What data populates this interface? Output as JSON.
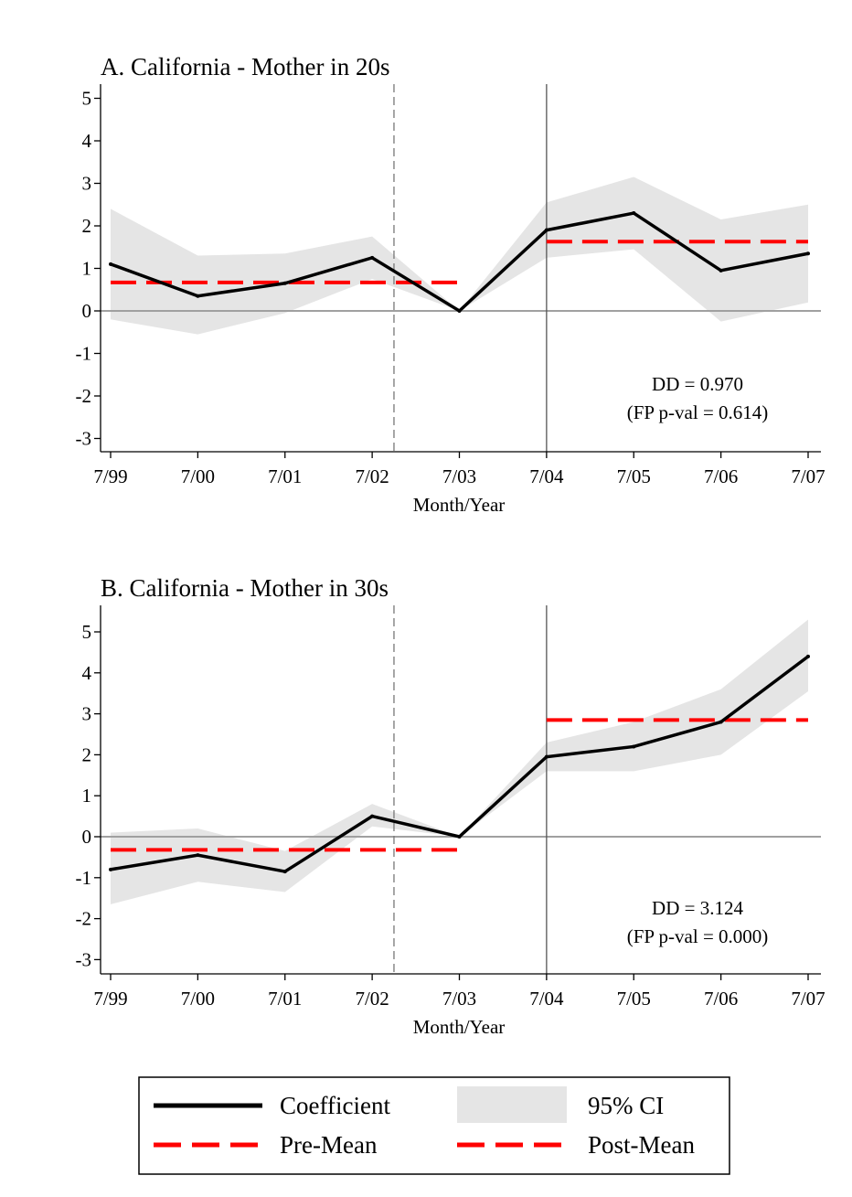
{
  "colors": {
    "coefficient": "#000000",
    "ci": "#e5e5e5",
    "mean": "#ff0000",
    "zero_line": "#a0a0a0",
    "treatment_line": "#555555",
    "dashed_vline": "#777777"
  },
  "legend": {
    "placement": "bottom",
    "items": [
      {
        "label": "Coefficient",
        "kind": "coefficient"
      },
      {
        "label": "95% CI",
        "kind": "ci"
      },
      {
        "label": "Pre-Mean",
        "kind": "pre_mean"
      },
      {
        "label": "Post-Mean",
        "kind": "post_mean"
      }
    ]
  },
  "chart_data": [
    {
      "type": "line",
      "title": "A. California - Mother in 20s",
      "xlabel": "Month/Year",
      "ylabel": "",
      "categories": [
        "7/99",
        "7/00",
        "7/01",
        "7/02",
        "7/03",
        "7/04",
        "7/05",
        "7/06",
        "7/07"
      ],
      "yticks": [
        5,
        4,
        3,
        2,
        1,
        0,
        -1,
        -2,
        -3
      ],
      "ylim": [
        -3.2,
        5.3
      ],
      "grid": false,
      "series": [
        {
          "name": "Coefficient",
          "values": [
            1.1,
            0.35,
            0.65,
            1.25,
            0.0,
            1.9,
            2.3,
            0.95,
            1.35
          ]
        },
        {
          "name": "95% CI",
          "lower": [
            -0.2,
            -0.55,
            -0.05,
            0.75,
            0.0,
            1.25,
            1.45,
            -0.25,
            0.2
          ],
          "upper": [
            2.4,
            1.3,
            1.35,
            1.75,
            0.0,
            2.55,
            3.15,
            2.15,
            2.5
          ]
        }
      ],
      "pre_mean": {
        "value": 0.67,
        "from": "7/99",
        "to": "7/03"
      },
      "post_mean": {
        "value": 1.63,
        "from": "7/04",
        "to": "7/07"
      },
      "reference_lines": {
        "zero": 0,
        "dashed_at": 3.25,
        "solid_at": 5
      },
      "annotation": {
        "line1": "DD = 0.970",
        "line2": "(FP p-val = 0.614)"
      }
    },
    {
      "type": "line",
      "title": "B. California - Mother in 30s",
      "xlabel": "Month/Year",
      "ylabel": "",
      "categories": [
        "7/99",
        "7/00",
        "7/01",
        "7/02",
        "7/03",
        "7/04",
        "7/05",
        "7/06",
        "7/07"
      ],
      "yticks": [
        5,
        4,
        3,
        2,
        1,
        0,
        -1,
        -2,
        -3
      ],
      "ylim": [
        -3.3,
        5.5
      ],
      "grid": false,
      "series": [
        {
          "name": "Coefficient",
          "values": [
            -0.8,
            -0.45,
            -0.85,
            0.5,
            0.0,
            1.95,
            2.2,
            2.8,
            4.4
          ]
        },
        {
          "name": "95% CI",
          "lower": [
            -1.65,
            -1.1,
            -1.35,
            0.25,
            0.0,
            1.6,
            1.6,
            2.0,
            3.55
          ],
          "upper": [
            0.1,
            0.2,
            -0.35,
            0.8,
            0.0,
            2.3,
            2.8,
            3.6,
            5.3
          ]
        }
      ],
      "pre_mean": {
        "value": -0.32,
        "from": "7/99",
        "to": "7/03"
      },
      "post_mean": {
        "value": 2.85,
        "from": "7/04",
        "to": "7/07"
      },
      "reference_lines": {
        "zero": 0,
        "dashed_at": 3.25,
        "solid_at": 5
      },
      "annotation": {
        "line1": "DD = 3.124",
        "line2": "(FP p-val = 0.000)"
      }
    }
  ]
}
